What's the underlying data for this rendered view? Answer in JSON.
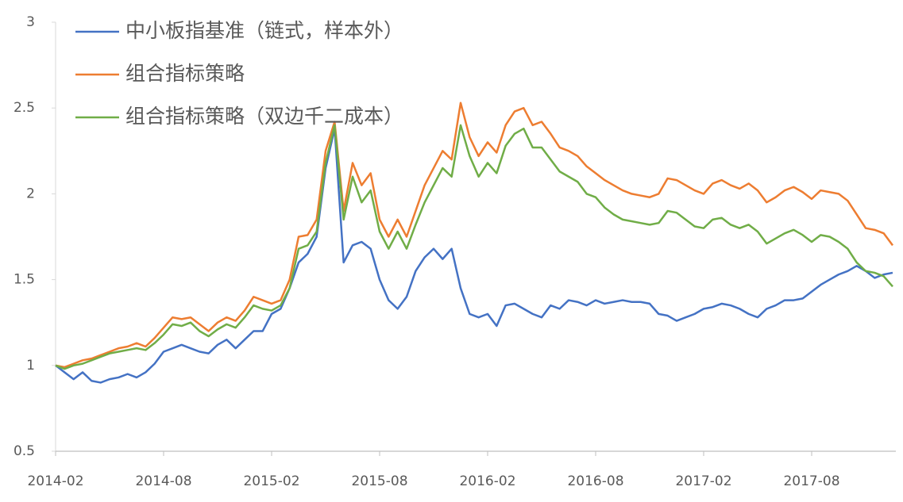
{
  "chart_data": {
    "type": "line",
    "categories": [
      "2014-02",
      null,
      null,
      null,
      null,
      null,
      null,
      null,
      null,
      null,
      null,
      null,
      "2014-08",
      null,
      null,
      null,
      null,
      null,
      null,
      null,
      null,
      null,
      null,
      null,
      "2015-02",
      null,
      null,
      null,
      null,
      null,
      null,
      null,
      null,
      null,
      null,
      null,
      "2015-08",
      null,
      null,
      null,
      null,
      null,
      null,
      null,
      null,
      null,
      null,
      null,
      "2016-02",
      null,
      null,
      null,
      null,
      null,
      null,
      null,
      null,
      null,
      null,
      null,
      "2016-08",
      null,
      null,
      null,
      null,
      null,
      null,
      null,
      null,
      null,
      null,
      null,
      "2017-02",
      null,
      null,
      null,
      null,
      null,
      null,
      null,
      null,
      null,
      null,
      null,
      "2017-08",
      null,
      null,
      null,
      null,
      null,
      null,
      null,
      null,
      null
    ],
    "series": [
      {
        "name": "中小板指基准（链式，样本外）",
        "color": "#4472c4",
        "values": [
          1.0,
          0.96,
          0.92,
          0.96,
          0.91,
          0.9,
          0.92,
          0.93,
          0.95,
          0.93,
          0.96,
          1.01,
          1.08,
          1.1,
          1.12,
          1.1,
          1.08,
          1.07,
          1.12,
          1.15,
          1.1,
          1.15,
          1.2,
          1.2,
          1.3,
          1.33,
          1.45,
          1.6,
          1.65,
          1.75,
          2.15,
          2.38,
          1.6,
          1.7,
          1.72,
          1.68,
          1.5,
          1.38,
          1.33,
          1.4,
          1.55,
          1.63,
          1.68,
          1.62,
          1.68,
          1.45,
          1.3,
          1.28,
          1.3,
          1.23,
          1.35,
          1.36,
          1.33,
          1.3,
          1.28,
          1.35,
          1.33,
          1.38,
          1.37,
          1.35,
          1.38,
          1.36,
          1.37,
          1.38,
          1.37,
          1.37,
          1.36,
          1.3,
          1.29,
          1.26,
          1.28,
          1.3,
          1.33,
          1.34,
          1.36,
          1.35,
          1.33,
          1.3,
          1.28,
          1.33,
          1.35,
          1.38,
          1.38,
          1.39,
          1.43,
          1.47,
          1.5,
          1.53,
          1.55,
          1.58,
          1.55,
          1.51,
          1.53,
          1.54
        ]
      },
      {
        "name": "组合指标策略",
        "color": "#ed7d31",
        "values": [
          1.0,
          0.99,
          1.01,
          1.03,
          1.04,
          1.06,
          1.08,
          1.1,
          1.11,
          1.13,
          1.11,
          1.16,
          1.22,
          1.28,
          1.27,
          1.28,
          1.24,
          1.2,
          1.25,
          1.28,
          1.26,
          1.32,
          1.4,
          1.38,
          1.36,
          1.38,
          1.5,
          1.75,
          1.76,
          1.85,
          2.25,
          2.42,
          1.9,
          2.18,
          2.05,
          2.12,
          1.85,
          1.75,
          1.85,
          1.75,
          1.9,
          2.05,
          2.15,
          2.25,
          2.2,
          2.53,
          2.33,
          2.22,
          2.3,
          2.24,
          2.4,
          2.48,
          2.5,
          2.4,
          2.42,
          2.35,
          2.27,
          2.25,
          2.22,
          2.16,
          2.12,
          2.08,
          2.05,
          2.02,
          2.0,
          1.99,
          1.98,
          2.0,
          2.09,
          2.08,
          2.05,
          2.02,
          2.0,
          2.06,
          2.08,
          2.05,
          2.03,
          2.06,
          2.02,
          1.95,
          1.98,
          2.02,
          2.04,
          2.01,
          1.97,
          2.02,
          2.01,
          2.0,
          1.96,
          1.88,
          1.8,
          1.79,
          1.77,
          1.7
        ]
      },
      {
        "name": "组合指标策略（双边千二成本）",
        "color": "#70ad47",
        "values": [
          1.0,
          0.98,
          1.0,
          1.01,
          1.03,
          1.05,
          1.07,
          1.08,
          1.09,
          1.1,
          1.09,
          1.13,
          1.18,
          1.24,
          1.23,
          1.25,
          1.2,
          1.17,
          1.21,
          1.24,
          1.22,
          1.28,
          1.35,
          1.33,
          1.32,
          1.35,
          1.45,
          1.68,
          1.7,
          1.78,
          2.18,
          2.4,
          1.85,
          2.1,
          1.95,
          2.02,
          1.78,
          1.68,
          1.78,
          1.68,
          1.82,
          1.95,
          2.05,
          2.15,
          2.1,
          2.4,
          2.22,
          2.1,
          2.18,
          2.12,
          2.28,
          2.35,
          2.38,
          2.27,
          2.27,
          2.2,
          2.13,
          2.1,
          2.07,
          2.0,
          1.98,
          1.92,
          1.88,
          1.85,
          1.84,
          1.83,
          1.82,
          1.83,
          1.9,
          1.89,
          1.85,
          1.81,
          1.8,
          1.85,
          1.86,
          1.82,
          1.8,
          1.82,
          1.78,
          1.71,
          1.74,
          1.77,
          1.79,
          1.76,
          1.72,
          1.76,
          1.75,
          1.72,
          1.68,
          1.6,
          1.55,
          1.54,
          1.52,
          1.46
        ]
      }
    ],
    "ylim": [
      0.5,
      3
    ],
    "yticks": [
      0.5,
      1,
      1.5,
      2,
      2.5,
      3
    ],
    "grid": false,
    "legend": "top-left"
  }
}
